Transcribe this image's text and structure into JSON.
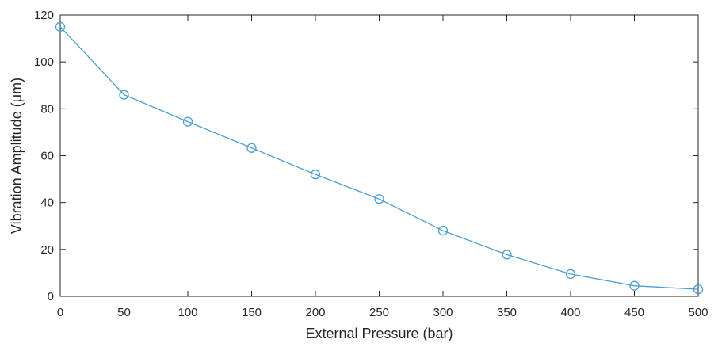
{
  "chart_data": {
    "type": "line",
    "title": "",
    "xlabel": "External Pressure (bar)",
    "ylabel": "Vibration Amplitude (μm)",
    "xlim": [
      0,
      500
    ],
    "ylim": [
      0,
      120
    ],
    "xticks": [
      0,
      50,
      100,
      150,
      200,
      250,
      300,
      350,
      400,
      450,
      500
    ],
    "yticks": [
      0,
      20,
      40,
      60,
      80,
      100,
      120
    ],
    "xtick_labels": [
      "0",
      "50",
      "100",
      "150",
      "200",
      "250",
      "300",
      "350",
      "400",
      "450",
      "500"
    ],
    "ytick_labels": [
      "0",
      "20",
      "40",
      "60",
      "80",
      "100",
      "120"
    ],
    "grid": false,
    "legend": "none",
    "color": "#4a9fd4",
    "marker": "circle",
    "series": [
      {
        "x": [
          0,
          50,
          100,
          150,
          200,
          250,
          300,
          350,
          400,
          450,
          500
        ],
        "values": [
          115,
          86,
          74.5,
          63.3,
          52,
          41.5,
          28,
          17.8,
          9.5,
          4.5,
          3
        ]
      }
    ]
  }
}
